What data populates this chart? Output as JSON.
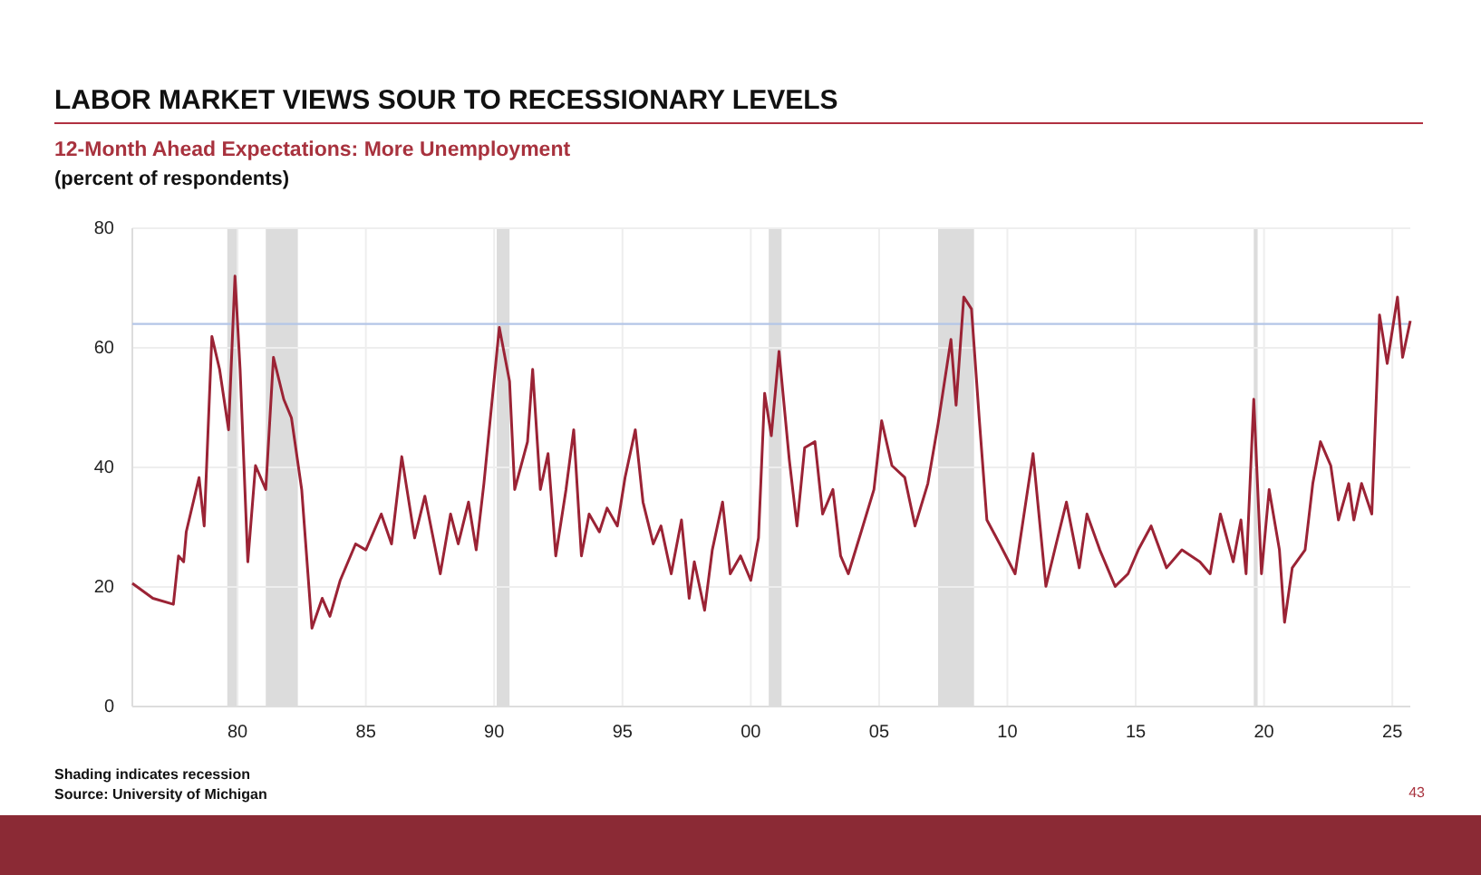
{
  "chart_data": {
    "type": "line",
    "title": "LABOR MARKET VIEWS SOUR TO RECESSIONARY LEVELS",
    "subtitle": "12-Month Ahead Expectations: More Unemployment",
    "ylabel": "(percent of respondents)",
    "annotations": [
      "Shading indicates recession",
      "Source: University of Michigan",
      "43"
    ],
    "xlim": [
      1975.9,
      2025.7
    ],
    "xticks": [
      {
        "value": 1980,
        "label": "80"
      },
      {
        "value": 1985,
        "label": "85"
      },
      {
        "value": 1990,
        "label": "90"
      },
      {
        "value": 1995,
        "label": "95"
      },
      {
        "value": 2000,
        "label": "00"
      },
      {
        "value": 2005,
        "label": "05"
      },
      {
        "value": 2010,
        "label": "10"
      },
      {
        "value": 2015,
        "label": "15"
      },
      {
        "value": 2020,
        "label": "20"
      },
      {
        "value": 2025,
        "label": "25"
      }
    ],
    "ylim": [
      0,
      80
    ],
    "yticks": [
      0,
      20,
      40,
      60,
      80
    ],
    "grid": true,
    "line_style": "solid",
    "x": [
      1975.9,
      1976.7,
      1977.5,
      1977.7,
      1977.9,
      1978.0,
      1978.5,
      1978.7,
      1979.0,
      1979.3,
      1979.65,
      1979.9,
      1980.1,
      1980.4,
      1980.7,
      1981.1,
      1981.4,
      1981.8,
      1982.1,
      1982.5,
      1982.9,
      1983.3,
      1983.6,
      1984.0,
      1984.6,
      1985.0,
      1985.6,
      1986.0,
      1986.4,
      1986.9,
      1987.3,
      1987.9,
      1988.3,
      1988.6,
      1989.0,
      1989.3,
      1989.6,
      1990.2,
      1990.6,
      1990.8,
      1991.3,
      1991.5,
      1991.8,
      1992.1,
      1992.4,
      1992.8,
      1993.1,
      1993.4,
      1993.7,
      1994.1,
      1994.4,
      1994.8,
      1995.1,
      1995.5,
      1995.8,
      1996.2,
      1996.5,
      1996.9,
      1997.3,
      1997.6,
      1997.8,
      1998.2,
      1998.5,
      1998.9,
      1999.2,
      1999.6,
      2000.0,
      2000.3,
      2000.54,
      2000.8,
      2001.1,
      2001.5,
      2001.8,
      2002.1,
      2002.5,
      2002.8,
      2003.2,
      2003.5,
      2003.8,
      2004.3,
      2004.8,
      2005.1,
      2005.5,
      2006.0,
      2006.4,
      2006.9,
      2007.3,
      2007.8,
      2008.0,
      2008.3,
      2008.6,
      2008.9,
      2009.2,
      2009.7,
      2010.3,
      2011.0,
      2011.5,
      2011.9,
      2012.3,
      2012.8,
      2013.1,
      2013.6,
      2014.2,
      2014.7,
      2015.1,
      2015.6,
      2016.2,
      2016.8,
      2017.5,
      2017.9,
      2018.3,
      2018.8,
      2019.1,
      2019.3,
      2019.6,
      2019.9,
      2020.2,
      2020.6,
      2020.8,
      2021.1,
      2021.6,
      2021.9,
      2022.2,
      2022.6,
      2022.9,
      2023.3,
      2023.5,
      2023.8,
      2024.2,
      2024.5,
      2024.8,
      2025.2,
      2025.4,
      2025.7
    ],
    "series": [
      {
        "color": "#9b2335",
        "values": [
          20.6,
          18.1,
          17.1,
          25.2,
          24.2,
          29.2,
          38.3,
          30.2,
          61.9,
          56.4,
          46.3,
          72.0,
          56.4,
          24.2,
          40.3,
          36.3,
          58.4,
          51.4,
          48.3,
          36.3,
          13.1,
          18.1,
          15.1,
          21.1,
          27.2,
          26.2,
          32.2,
          27.2,
          41.8,
          28.2,
          35.2,
          22.2,
          32.2,
          27.2,
          34.2,
          26.2,
          37.3,
          63.4,
          54.4,
          36.3,
          44.3,
          56.4,
          36.3,
          42.3,
          25.2,
          36.3,
          46.3,
          25.2,
          32.2,
          29.2,
          33.2,
          30.2,
          38.3,
          46.3,
          34.2,
          27.2,
          30.2,
          22.2,
          31.2,
          18.1,
          24.2,
          16.1,
          26.2,
          34.2,
          22.2,
          25.2,
          21.1,
          28.2,
          52.4,
          45.3,
          59.4,
          41.3,
          30.2,
          43.3,
          44.3,
          32.2,
          36.3,
          25.2,
          22.2,
          29.2,
          36.3,
          47.8,
          40.3,
          38.3,
          30.2,
          37.3,
          47.3,
          61.4,
          50.4,
          68.5,
          66.5,
          48.3,
          31.2,
          27.2,
          22.2,
          42.3,
          20.1,
          27.2,
          34.2,
          23.2,
          32.2,
          26.2,
          20.1,
          22.2,
          26.2,
          30.2,
          23.2,
          26.2,
          24.2,
          22.2,
          32.2,
          24.2,
          31.2,
          22.2,
          51.4,
          22.2,
          36.3,
          26.2,
          14.1,
          23.2,
          26.2,
          37.3,
          44.3,
          40.3,
          31.2,
          37.3,
          31.2,
          37.3,
          32.2,
          65.5,
          57.4,
          68.5,
          58.4,
          64.5
        ]
      }
    ],
    "bands": [
      {
        "axis": "x",
        "from": 1979.6,
        "to": 1980.0,
        "color": "#dcdcdc"
      },
      {
        "axis": "x",
        "from": 1981.1,
        "to": 1982.35,
        "color": "#dcdcdc"
      },
      {
        "axis": "x",
        "from": 1990.1,
        "to": 1990.6,
        "color": "#dcdcdc"
      },
      {
        "axis": "x",
        "from": 2000.7,
        "to": 2001.2,
        "color": "#dcdcdc"
      },
      {
        "axis": "x",
        "from": 2007.3,
        "to": 2008.7,
        "color": "#dcdcdc"
      },
      {
        "axis": "x",
        "from": 2019.6,
        "to": 2019.75,
        "color": "#dcdcdc"
      }
    ],
    "ref_lines": [
      {
        "axis": "y",
        "value": 64,
        "color": "#b4c6e7"
      }
    ]
  }
}
